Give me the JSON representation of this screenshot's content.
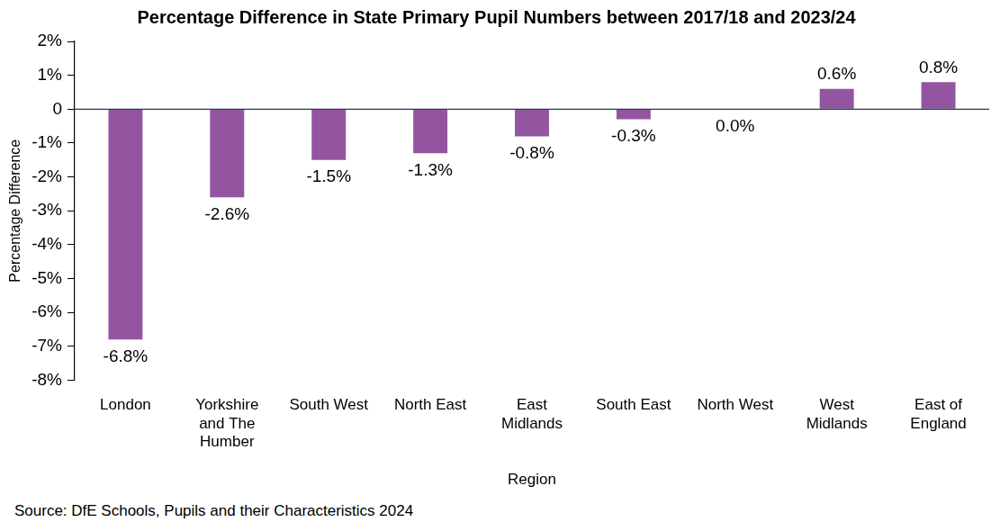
{
  "chart_data": {
    "type": "bar",
    "title": "Percentage Difference in State Primary Pupil Numbers between 2017/18 and 2023/24",
    "x_label": "Region",
    "y_label": "Percentage Difference",
    "source": "Source: DfE Schools, Pupils and their Characteristics 2024",
    "categories": [
      "London",
      "Yorkshire and The Humber",
      "South West",
      "North East",
      "East Midlands",
      "South East",
      "North West",
      "West Midlands",
      "East of England"
    ],
    "values": [
      -6.8,
      -2.6,
      -1.5,
      -1.3,
      -0.8,
      -0.3,
      0,
      0.6,
      0.8
    ],
    "value_labels": [
      "-6.8%",
      "-2.6%",
      "-1.5%",
      "-1.3%",
      "-0.8%",
      "-0.3%",
      "0.0%",
      "0.6%",
      "0.8%"
    ],
    "data_labels": true,
    "color": "#9355a0",
    "ylim": [
      -8,
      2
    ],
    "yticks": [
      {
        "value": -8,
        "label": "-8%"
      },
      {
        "value": -7,
        "label": "-7%"
      },
      {
        "value": -6,
        "label": "-6%"
      },
      {
        "value": -5,
        "label": "-5%"
      },
      {
        "value": -4,
        "label": "-4%"
      },
      {
        "value": -3,
        "label": "-3%"
      },
      {
        "value": -2,
        "label": "-2%"
      },
      {
        "value": -1,
        "label": "-1%"
      },
      {
        "value": 0,
        "label": "0"
      },
      {
        "value": 1,
        "label": "1%"
      },
      {
        "value": 2,
        "label": "2%"
      }
    ],
    "grid": false
  }
}
